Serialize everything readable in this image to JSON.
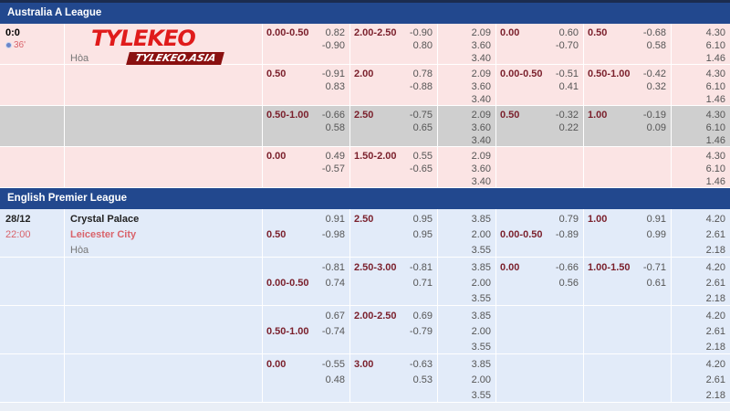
{
  "colors": {
    "header": "#22488e",
    "line_label": "#7a1f2b",
    "away_team": "#d9636b",
    "highlight_row": "#cfcfcf"
  },
  "watermark": {
    "brand": "TYLEKEO",
    "site": "TYLEKEO.ASIA"
  },
  "leagues": [
    {
      "name": "Australia A League",
      "style": "au",
      "match": {
        "score": "0:0",
        "minute": "36'",
        "live_icon": "radio-dot-icon",
        "draw": "Hòa"
      },
      "rows": [
        {
          "hdp": {
            "line": "0.00-0.50",
            "line_row": 0,
            "odds": [
              "0.82",
              "-0.90"
            ]
          },
          "ou": {
            "line": "2.00-2.50",
            "line_row": 0,
            "odds": [
              "-0.90",
              "0.80"
            ]
          },
          "x12": [
            "2.09",
            "3.60",
            "3.40"
          ],
          "h1_hdp": {
            "line": "0.00",
            "line_row": 0,
            "odds": [
              "0.60",
              "-0.70"
            ]
          },
          "h1_ou": {
            "line": "0.50",
            "line_row": 0,
            "odds": [
              "-0.68",
              "0.58"
            ]
          },
          "h1_x12": [
            "4.30",
            "6.10",
            "1.46"
          ]
        },
        {
          "hdp": {
            "line": "0.50",
            "line_row": 0,
            "odds": [
              "-0.91",
              "0.83"
            ]
          },
          "ou": {
            "line": "2.00",
            "line_row": 0,
            "odds": [
              "0.78",
              "-0.88"
            ]
          },
          "x12": [
            "2.09",
            "3.60",
            "3.40"
          ],
          "h1_hdp": {
            "line": "0.00-0.50",
            "line_row": 0,
            "odds": [
              "-0.51",
              "0.41"
            ]
          },
          "h1_ou": {
            "line": "0.50-1.00",
            "line_row": 0,
            "odds": [
              "-0.42",
              "0.32"
            ]
          },
          "h1_x12": [
            "4.30",
            "6.10",
            "1.46"
          ]
        },
        {
          "highlight": true,
          "hdp": {
            "line": "0.50-1.00",
            "line_row": 0,
            "odds": [
              "-0.66",
              "0.58"
            ]
          },
          "ou": {
            "line": "2.50",
            "line_row": 0,
            "odds": [
              "-0.75",
              "0.65"
            ]
          },
          "x12": [
            "2.09",
            "3.60",
            "3.40"
          ],
          "h1_hdp": {
            "line": "0.50",
            "line_row": 0,
            "odds": [
              "-0.32",
              "0.22"
            ]
          },
          "h1_ou": {
            "line": "1.00",
            "line_row": 0,
            "odds": [
              "-0.19",
              "0.09"
            ]
          },
          "h1_x12": [
            "4.30",
            "6.10",
            "1.46"
          ]
        },
        {
          "hdp": {
            "line": "0.00",
            "line_row": 0,
            "odds": [
              "0.49",
              "-0.57"
            ]
          },
          "ou": {
            "line": "1.50-2.00",
            "line_row": 0,
            "odds": [
              "0.55",
              "-0.65"
            ]
          },
          "x12": [
            "2.09",
            "3.60",
            "3.40"
          ],
          "h1_hdp": null,
          "h1_ou": null,
          "h1_x12": [
            "4.30",
            "6.10",
            "1.46"
          ]
        }
      ]
    },
    {
      "name": "English Premier League",
      "style": "ep",
      "match": {
        "date": "28/12",
        "time": "22:00",
        "home": "Crystal Palace",
        "away": "Leicester City",
        "draw": "Hòa"
      },
      "rows": [
        {
          "hdp": {
            "line": "0.50",
            "line_row": 1,
            "odds": [
              "0.91",
              "-0.98"
            ]
          },
          "ou": {
            "line": "2.50",
            "line_row": 0,
            "odds": [
              "0.95",
              "0.95"
            ]
          },
          "x12": [
            "3.85",
            "2.00",
            "3.55"
          ],
          "h1_hdp": {
            "line": "0.00-0.50",
            "line_row": 1,
            "odds": [
              "0.79",
              "-0.89"
            ]
          },
          "h1_ou": {
            "line": "1.00",
            "line_row": 0,
            "odds": [
              "0.91",
              "0.99"
            ]
          },
          "h1_x12": [
            "4.20",
            "2.61",
            "2.18"
          ]
        },
        {
          "hdp": {
            "line": "0.00-0.50",
            "line_row": 1,
            "odds": [
              "-0.81",
              "0.74"
            ]
          },
          "ou": {
            "line": "2.50-3.00",
            "line_row": 0,
            "odds": [
              "-0.81",
              "0.71"
            ]
          },
          "x12": [
            "3.85",
            "2.00",
            "3.55"
          ],
          "h1_hdp": {
            "line": "0.00",
            "line_row": 0,
            "odds": [
              "-0.66",
              "0.56"
            ]
          },
          "h1_ou": {
            "line": "1.00-1.50",
            "line_row": 0,
            "odds": [
              "-0.71",
              "0.61"
            ]
          },
          "h1_x12": [
            "4.20",
            "2.61",
            "2.18"
          ]
        },
        {
          "hdp": {
            "line": "0.50-1.00",
            "line_row": 1,
            "odds": [
              "0.67",
              "-0.74"
            ]
          },
          "ou": {
            "line": "2.00-2.50",
            "line_row": 0,
            "odds": [
              "0.69",
              "-0.79"
            ]
          },
          "x12": [
            "3.85",
            "2.00",
            "3.55"
          ],
          "h1_hdp": null,
          "h1_ou": null,
          "h1_x12": [
            "4.20",
            "2.61",
            "2.18"
          ]
        },
        {
          "hdp": {
            "line": "0.00",
            "line_row": 0,
            "odds": [
              "-0.55",
              "0.48"
            ]
          },
          "ou": {
            "line": "3.00",
            "line_row": 0,
            "odds": [
              "-0.63",
              "0.53"
            ]
          },
          "x12": [
            "3.85",
            "2.00",
            "3.55"
          ],
          "h1_hdp": null,
          "h1_ou": null,
          "h1_x12": [
            "4.20",
            "2.61",
            "2.18"
          ]
        }
      ]
    }
  ]
}
